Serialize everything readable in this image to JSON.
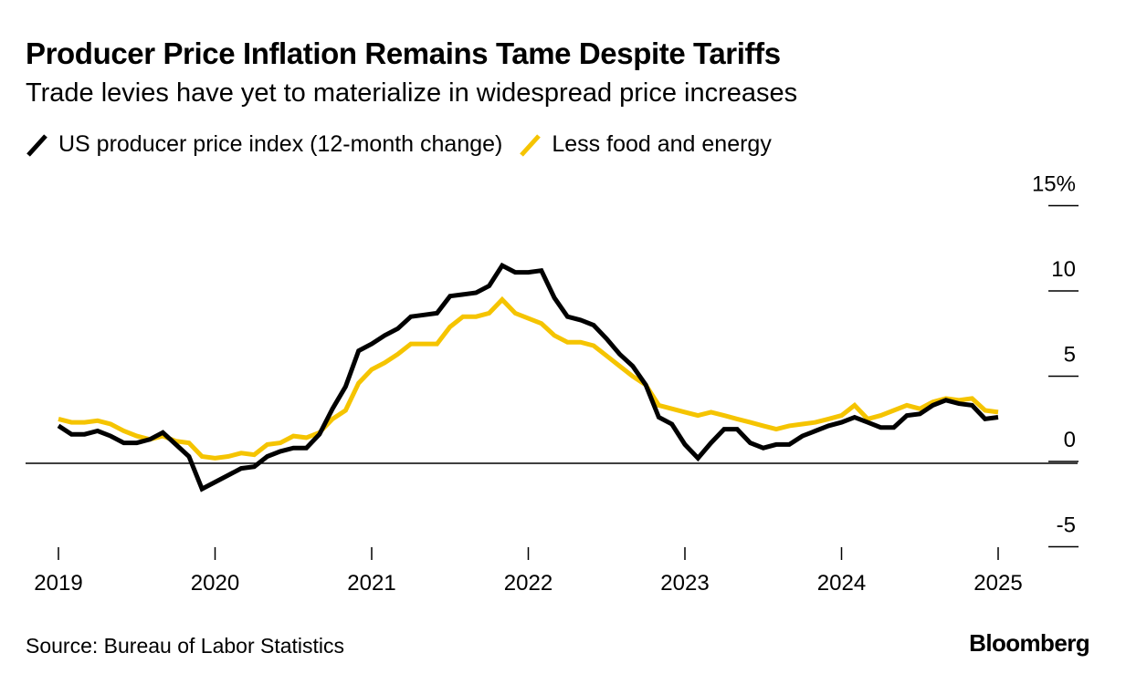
{
  "header": {
    "title": "Producer Price Inflation Remains Tame Despite Tariffs",
    "subtitle": "Trade levies have yet to materialize in widespread price increases"
  },
  "footer": {
    "source": "Source: Bureau of Labor Statistics",
    "logo": "Bloomberg"
  },
  "chart_data": {
    "type": "line",
    "title": "Producer Price Inflation Remains Tame Despite Tariffs",
    "subtitle": "Trade levies have yet to materialize in widespread price increases",
    "xlabel": "",
    "ylabel": "",
    "x_start": "2019-01",
    "x_frequency": "monthly",
    "x_ticks": [
      2019,
      2020,
      2021,
      2022,
      2023,
      2024,
      2025
    ],
    "y_ticks": [
      -5,
      0,
      5,
      10,
      15
    ],
    "y_tick_labels": [
      "-5",
      "0",
      "5",
      "10",
      "15%"
    ],
    "ylim": [
      -5,
      15
    ],
    "grid": false,
    "zero_line": true,
    "legend_position": "top-left",
    "series": [
      {
        "name": "US producer price index (12-month change)",
        "color": "#000000",
        "values": [
          2.2,
          1.7,
          1.7,
          1.9,
          1.6,
          1.2,
          1.2,
          1.4,
          1.8,
          1.1,
          0.4,
          -1.5,
          -1.1,
          -0.7,
          -0.3,
          -0.2,
          0.4,
          0.7,
          0.9,
          0.9,
          1.7,
          3.2,
          4.5,
          6.6,
          7.0,
          7.5,
          7.9,
          8.6,
          8.7,
          8.8,
          9.8,
          9.9,
          10.0,
          10.4,
          11.6,
          11.2,
          11.2,
          11.3,
          9.7,
          8.6,
          8.4,
          8.1,
          7.3,
          6.4,
          5.7,
          4.6,
          2.7,
          2.3,
          1.1,
          0.3,
          1.2,
          2.0,
          2.0,
          1.2,
          0.9,
          1.1,
          1.1,
          1.6,
          1.9,
          2.2,
          2.4,
          2.7,
          2.4,
          2.1,
          2.1,
          2.8,
          2.9,
          3.4,
          3.7,
          3.5,
          3.4,
          2.6,
          2.7
        ]
      },
      {
        "name": "Less food and energy",
        "color": "#F5C400",
        "values": [
          2.6,
          2.4,
          2.4,
          2.5,
          2.3,
          1.9,
          1.6,
          1.4,
          1.6,
          1.3,
          1.2,
          0.4,
          0.3,
          0.4,
          0.6,
          0.5,
          1.1,
          1.2,
          1.6,
          1.5,
          1.8,
          2.6,
          3.1,
          4.7,
          5.5,
          5.9,
          6.4,
          7.0,
          7.0,
          7.0,
          8.0,
          8.6,
          8.6,
          8.8,
          9.6,
          8.8,
          8.5,
          8.2,
          7.5,
          7.1,
          7.1,
          6.9,
          6.3,
          5.7,
          5.1,
          4.6,
          3.4,
          3.2,
          3.0,
          2.8,
          3.0,
          2.8,
          2.6,
          2.4,
          2.2,
          2.0,
          2.2,
          2.3,
          2.4,
          2.6,
          2.8,
          3.4,
          2.6,
          2.8,
          3.1,
          3.4,
          3.2,
          3.6,
          3.8,
          3.7,
          3.8,
          3.1,
          3.0
        ]
      }
    ]
  }
}
